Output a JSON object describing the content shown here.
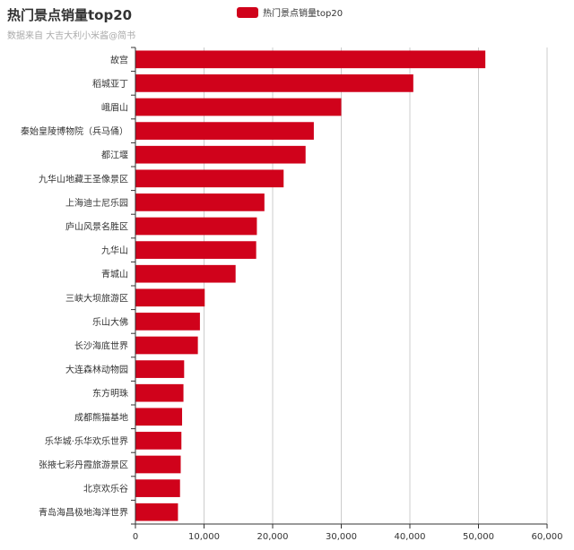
{
  "title": "热门景点销量top20",
  "subtitle": "数据来自 大吉大利小米酱@简书",
  "colors": {
    "bar": "#d0021b",
    "axis": "#333333",
    "grid": "#cccccc"
  },
  "chart_data": {
    "type": "bar",
    "orientation": "horizontal",
    "title": "热门景点销量top20",
    "subtitle": "数据来自 大吉大利小米酱@简书",
    "xlim": [
      0,
      60000
    ],
    "x_ticks": [
      "0",
      "10,000",
      "20,000",
      "30,000",
      "40,000",
      "50,000",
      "60,000"
    ],
    "legend": {
      "position": "top-center",
      "entries": [
        "热门景点销量top20"
      ]
    },
    "grid": true,
    "series": [
      {
        "name": "热门景点销量top20",
        "categories": [
          "故宫",
          "稻城亚丁",
          "峨眉山",
          "秦始皇陵博物院（兵马俑）",
          "都江堰",
          "九华山地藏王圣像景区",
          "上海迪士尼乐园",
          "庐山风景名胜区",
          "九华山",
          "青城山",
          "三峡大坝旅游区",
          "乐山大佛",
          "长沙海底世界",
          "大连森林动物园",
          "东方明珠",
          "成都熊猫基地",
          "乐华城·乐华欢乐世界",
          "张掖七彩丹霞旅游景区",
          "北京欢乐谷",
          "青岛海昌极地海洋世界"
        ],
        "values": [
          51000,
          40500,
          30000,
          26000,
          24800,
          21600,
          18800,
          17700,
          17600,
          14600,
          10100,
          9400,
          9100,
          7100,
          7000,
          6800,
          6700,
          6600,
          6500,
          6200
        ]
      }
    ]
  }
}
